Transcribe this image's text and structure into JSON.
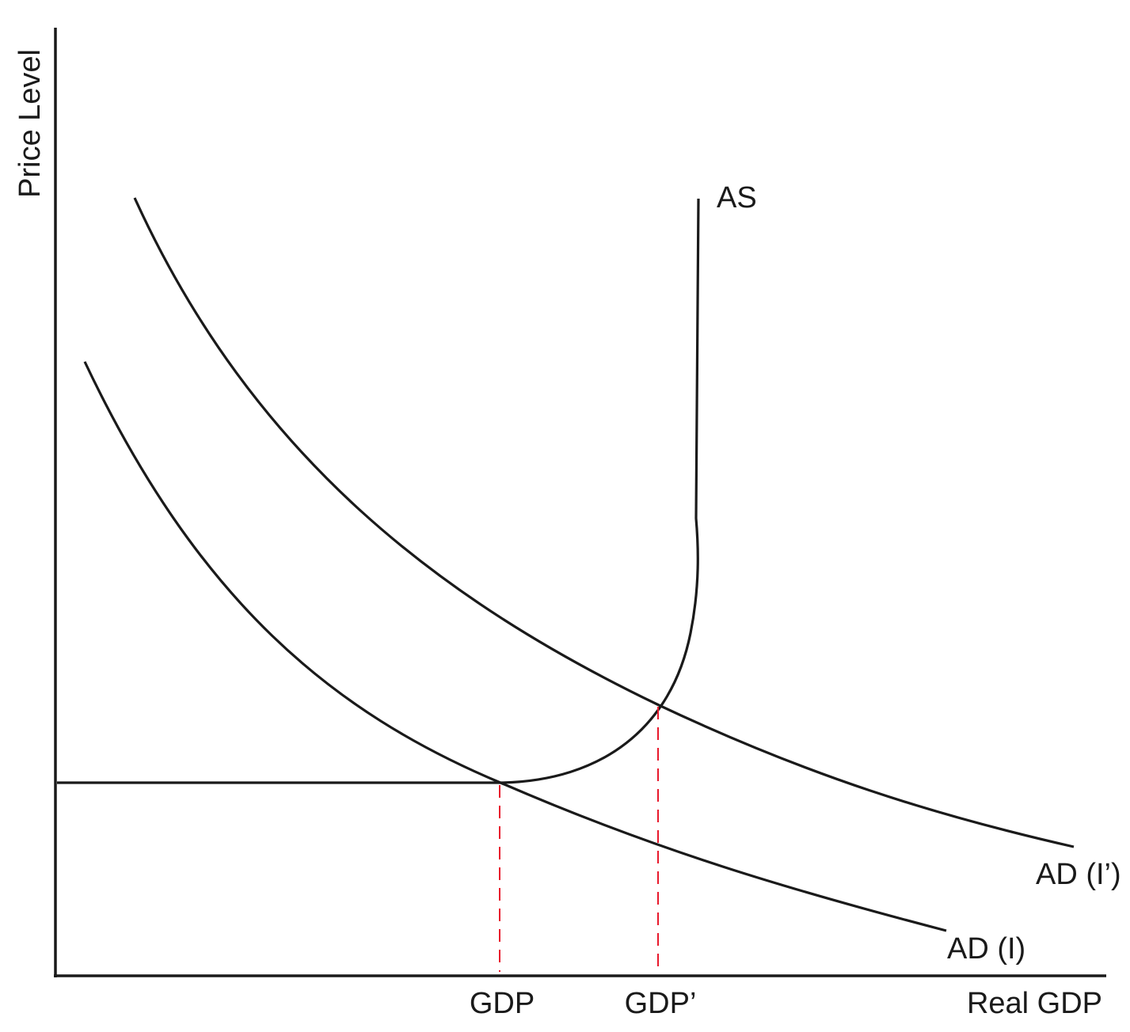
{
  "axes": {
    "y_label": "Price Level",
    "x_label": "Real GDP"
  },
  "curves": {
    "as_label": "AS",
    "ad_original_label": "AD (I)",
    "ad_shifted_label": "AD (I’)"
  },
  "x_ticks": {
    "gdp": "GDP",
    "gdp_prime": "GDP’"
  },
  "colors": {
    "line": "#1a1a1a",
    "guide": "#e8192c",
    "background": "#ffffff"
  }
}
